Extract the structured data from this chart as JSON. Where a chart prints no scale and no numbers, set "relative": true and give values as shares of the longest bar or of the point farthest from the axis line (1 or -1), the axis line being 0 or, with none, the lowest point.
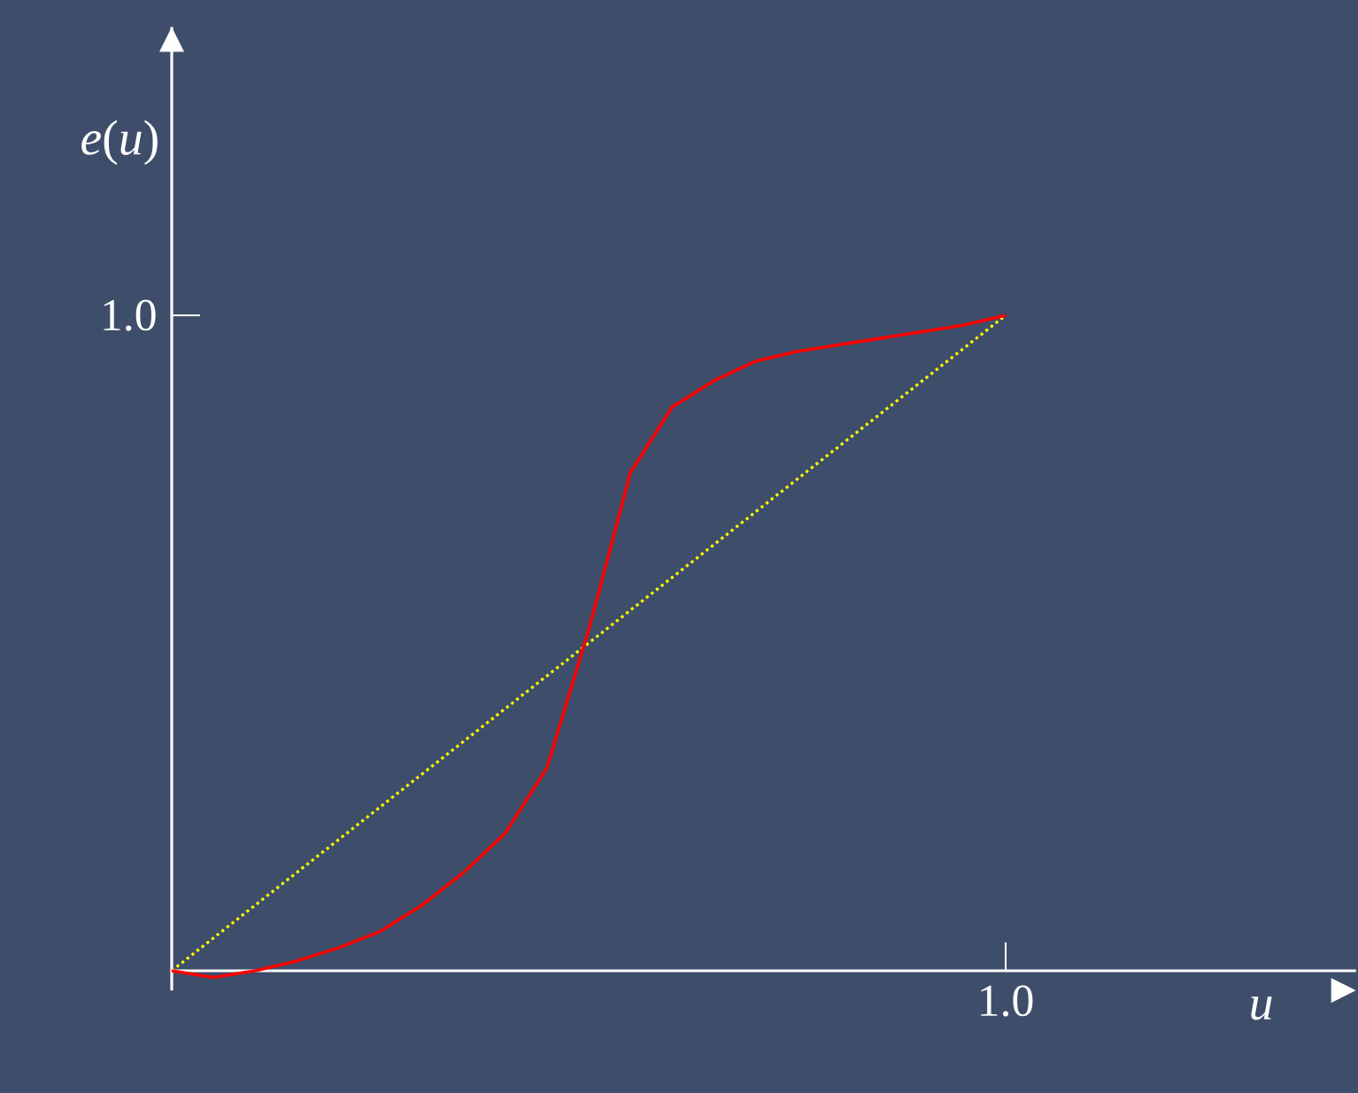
{
  "chart_data": {
    "type": "line",
    "relative": true,
    "xlabel": "u",
    "ylabel": "*e*(*u*)",
    "annotations": [
      "1.0",
      "1.0"
    ],
    "marker": "none",
    "categories": [
      null,
      null,
      null,
      null,
      null,
      null,
      null,
      null,
      null,
      null,
      null,
      null,
      null,
      null,
      null,
      null,
      null,
      null,
      null,
      null,
      null
    ],
    "series": [
      {
        "color": "#ffff00",
        "line_style": "dotted",
        "values": [
          0,
          0.05,
          0.1,
          0.15,
          0.2,
          0.25,
          0.3,
          0.35,
          0.4,
          0.45,
          0.5,
          0.55,
          0.6,
          0.65,
          0.7,
          0.75,
          0.8,
          0.85,
          0.9,
          0.95,
          1.0
        ]
      },
      {
        "color": "#ff0000",
        "line_style": "solid",
        "values": [
          0,
          -0.01,
          0,
          0.015,
          0.035,
          0.06,
          0.1,
          0.15,
          0.21,
          0.31,
          0.52,
          0.76,
          0.86,
          0.9,
          0.93,
          0.945,
          0.955,
          0.965,
          0.975,
          0.985,
          1.0
        ]
      }
    ]
  }
}
